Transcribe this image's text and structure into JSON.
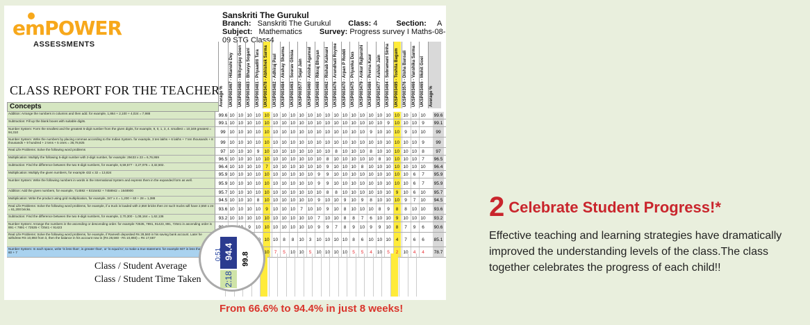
{
  "report": {
    "logo_text_em": "em",
    "logo_text_power": "POWER",
    "logo_sub": "ASSESSMENTS",
    "title": "CLASS REPORT FOR THE TEACHER",
    "school": "Sanskriti The Gurukul",
    "branch_label": "Branch:",
    "branch": "Sanskriti The Gurukul",
    "class_label": "Class:",
    "class_value": "4",
    "section_label": "Section:",
    "section_value": "A",
    "subject_label": "Subject:",
    "subject": "Mathematics",
    "survey_label": "Survey:",
    "survey": "Progress survey I Maths-08-09 STG Class4",
    "concepts_header": "Concepts",
    "avg_header": "Average %",
    "students": [
      "UKSP003467 - Hitanshi Dey",
      "UKSP003480 - Mrityunjay Goen",
      "UKSP003483 - Bhavya Sogani",
      "UKSP003481 - Priyaaditi Tara",
      "UKSP003478 - Abhishek Sarma",
      "UKSP003482 - Adhiraj Paul",
      "UKSP003484 - Akshay Sharma",
      "UKSP003463 - Sourav Ghisia",
      "UKSP003577 - Sejal Jain",
      "UKSP003460 - Anisha Agarwal",
      "UKSP003468 - Rikraj Bhuyan",
      "UKSP003462 - Rishab Kalwani",
      "UKSP003476 - Arundhati Royme",
      "UKSP003470 - Arpan P Roddi",
      "UKSP003475 - Priyanka Das",
      "UKSP003479 - Ankur Rajbanshi",
      "UKSP003486 - Prerna Kaur",
      "UKSP003477 - Ashish Jain",
      "UKSP003494 - Subramani Sinha",
      "UKSP003495 - Toshila Bagum",
      "UKSP003576 - Disha Bansali",
      "UKSP003466 - Vanshika Sarma",
      "UKSP003465 - Mohit Goel"
    ],
    "rows": [
      {
        "concept": "Addition: Arrange the numbers in columns and then add. for example, 1,864 + 2,100 + 4,024 = 7,988",
        "avg": "99.6",
        "vals": [
          "10",
          "10",
          "10",
          "10",
          "10",
          "10",
          "10",
          "10",
          "10",
          "10",
          "10",
          "10",
          "10",
          "10",
          "10",
          "10",
          "10",
          "10",
          "10",
          "10",
          "10",
          "10",
          "10"
        ],
        "avg2": "99.6",
        "h": 10
      },
      {
        "concept": "Subtraction: Fill up the blank boxes with suitable digits.",
        "avg": "99.1",
        "vals": [
          "10",
          "10",
          "10",
          "10",
          "10",
          "10",
          "10",
          "10",
          "10",
          "10",
          "10",
          "10",
          "10",
          "10",
          "10",
          "10",
          "10",
          "10",
          "9",
          "10",
          "10",
          "10",
          "9"
        ],
        "avg2": "99.1",
        "h": 10
      },
      {
        "concept": "Number System: Form the smallest and the greatest 5-digit number from the given digits, for example, 9, 0, 1, 3, 4. smallest = 10,349 greatest = 94,310",
        "avg": "99",
        "vals": [
          "10",
          "10",
          "10",
          "10",
          "10",
          "10",
          "10",
          "10",
          "10",
          "10",
          "10",
          "10",
          "10",
          "10",
          "10",
          "10",
          "9",
          "10",
          "10",
          "10",
          "9",
          "10",
          "10"
        ],
        "avg2": "99",
        "h": 14
      },
      {
        "concept": "Number System: Write the numbers by placing commas according to the Indian System. for example, 3 ten lakhs + 6 lakhs + 7 ten thousands + 8 thousands + 9 hundred + 2 tens + 5 ones = 36,78,925",
        "avg": "99",
        "vals": [
          "10",
          "10",
          "10",
          "10",
          "10",
          "10",
          "10",
          "10",
          "10",
          "10",
          "10",
          "10",
          "10",
          "10",
          "10",
          "10",
          "10",
          "10",
          "10",
          "10",
          "10",
          "10",
          "9"
        ],
        "avg2": "99",
        "h": 14
      },
      {
        "concept": "Real Life Problems: Solve the following word problems",
        "avg": "97",
        "vals": [
          "10",
          "10",
          "10",
          "9",
          "10",
          "10",
          "10",
          "10",
          "10",
          "10",
          "10",
          "10",
          "8",
          "10",
          "10",
          "10",
          "8",
          "10",
          "10",
          "10",
          "10",
          "10",
          "8"
        ],
        "avg2": "97",
        "h": 10
      },
      {
        "concept": "Multiplication: Multiply the following 5-digit number with 2-digit number, for example: 29433 x 23 = 6,76,959",
        "avg": "96.5",
        "vals": [
          "10",
          "10",
          "10",
          "10",
          "10",
          "10",
          "10",
          "10",
          "10",
          "10",
          "10",
          "8",
          "10",
          "10",
          "10",
          "10",
          "10",
          "8",
          "10",
          "10",
          "10",
          "10",
          "7"
        ],
        "avg2": "96.5",
        "h": 10
      },
      {
        "concept": "Subtraction: Find the difference between the two 6-digit numbers, for example, 6,59,577 - 3,27,075 = 3,32,502.",
        "avg": "96.4",
        "vals": [
          "10",
          "10",
          "10",
          "10",
          "7",
          "10",
          "10",
          "10",
          "10",
          "10",
          "10",
          "9",
          "10",
          "10",
          "10",
          "8",
          "10",
          "10",
          "10",
          "10",
          "10",
          "10",
          "10"
        ],
        "avg2": "96.4",
        "h": 10
      },
      {
        "concept": "Multiplication: Multiply the given numbers, for example 432 x 32 = 13,824",
        "avg": "95.9",
        "vals": [
          "10",
          "10",
          "10",
          "10",
          "10",
          "10",
          "10",
          "10",
          "10",
          "10",
          "9",
          "9",
          "10",
          "10",
          "10",
          "10",
          "10",
          "10",
          "10",
          "10",
          "10",
          "6",
          "7"
        ],
        "avg2": "95.9",
        "h": 10
      },
      {
        "concept": "Number System: Write the following numbers in words in the International System and express them in the expanded form as well.",
        "avg": "95.9",
        "vals": [
          "10",
          "10",
          "10",
          "10",
          "10",
          "10",
          "10",
          "10",
          "10",
          "10",
          "9",
          "9",
          "10",
          "10",
          "10",
          "10",
          "10",
          "10",
          "10",
          "10",
          "10",
          "6",
          "7"
        ],
        "avg2": "95.9",
        "h": 14
      },
      {
        "concept": "Addition: Add the given numbers, for example, 714592 + 8315462 + 7458942 = 1648900",
        "avg": "95.7",
        "vals": [
          "10",
          "10",
          "10",
          "10",
          "10",
          "10",
          "10",
          "10",
          "10",
          "10",
          "10",
          "8",
          "8",
          "10",
          "10",
          "10",
          "10",
          "10",
          "10",
          "9",
          "10",
          "6",
          "10"
        ],
        "avg2": "95.7",
        "h": 10
      },
      {
        "concept": "Multiplication: Write the product using grid multiplication, for example, 347 x 4 = 1,200 + 60 + 28 = 1,388",
        "avg": "94.5",
        "vals": [
          "10",
          "10",
          "10",
          "8",
          "10",
          "10",
          "10",
          "10",
          "10",
          "10",
          "9",
          "10",
          "10",
          "9",
          "10",
          "9",
          "8",
          "10",
          "10",
          "10",
          "9",
          "7",
          "10"
        ],
        "avg2": "94.5",
        "h": 10
      },
      {
        "concept": "Real Life Problems: Solve the following word problems, for example, if a truck is loaded with 2,550 bricks then 24 such trucks will have 2,550 x 24 = 61,200 bricks.",
        "avg": "93.6",
        "vals": [
          "10",
          "10",
          "10",
          "10",
          "9",
          "10",
          "10",
          "10",
          "7",
          "10",
          "10",
          "9",
          "10",
          "8",
          "10",
          "10",
          "10",
          "8",
          "9",
          "8",
          "8",
          "10",
          "10"
        ],
        "avg2": "93.6",
        "h": 14
      },
      {
        "concept": "Subtraction: Find the difference between the two 6-digit numbers, for example, 2,70,300 - 1,08,164 = 1,62,136",
        "avg": "93.2",
        "vals": [
          "10",
          "10",
          "10",
          "10",
          "10",
          "10",
          "10",
          "10",
          "10",
          "10",
          "7",
          "10",
          "10",
          "8",
          "8",
          "7",
          "6",
          "10",
          "10",
          "9",
          "10",
          "10",
          "10"
        ],
        "avg2": "93.2",
        "h": 10
      },
      {
        "concept": "Number System: Arrange the numbers in the ascending or descending order. for example 72535, 7891, 91423, 891, 72541 in ascending order is 891 < 7891 < 72535 < 72541 < 91423",
        "avg": "90.6",
        "vals": [
          "10",
          "10",
          "9",
          "10",
          "10",
          "10",
          "10",
          "10",
          "10",
          "10",
          "9",
          "9",
          "7",
          "8",
          "9",
          "10",
          "9",
          "9",
          "10",
          "8",
          "7",
          "9",
          "6"
        ],
        "avg2": "90.6",
        "h": 14
      },
      {
        "concept": "Real Life Problems: Solve the following word problems, for example, if Ramesh deposited Rs 28,560 in his saving bank account. Later he withdrew RS 10,893 from it, then the balance in his account now is (Rs 28,560 - Rs 10,893) = Rs 17,667",
        "avg": "85.1",
        "vals": [
          "10",
          "10",
          "10",
          "10",
          "10",
          "10",
          "8",
          "8",
          "10",
          "3",
          "10",
          "10",
          "10",
          "10",
          "8",
          "6",
          "10",
          "10",
          "10",
          "4",
          "7",
          "6",
          "6"
        ],
        "avg2": "85.1",
        "h": 20
      },
      {
        "concept": "Number System: In each space, write 'is less than', is greater than', or 'is equal to', to make a true statement. for example 607 is less than 700 + 60 + 7",
        "avg": "78.7",
        "vals": [
          "10",
          "10",
          "10",
          "10",
          "10",
          "7",
          "5",
          "10",
          "10",
          "5",
          "10",
          "10",
          "10",
          "10",
          "5",
          "5",
          "4",
          "10",
          "5",
          "2",
          "10",
          "4",
          "4"
        ],
        "avg2": "78.7",
        "h": 14,
        "blue": true
      }
    ],
    "bottom_label_1": "Class / Student Average",
    "bottom_label_2": "Class / Student Time Taken",
    "class_avg": "94.4",
    "class_time": "2:18",
    "zoom_pct": "99.8",
    "zoom_small": "0:51"
  },
  "caption": "From 66.6% to 94.4% in just 8 weeks!",
  "headline_num": "2",
  "headline_text": "Celebrate Student Progress!*",
  "paragraph": "Effective teaching  and learning strategies have dramatically improved the understanding levels of the class.The class together celebrates the progress of each child!!"
}
